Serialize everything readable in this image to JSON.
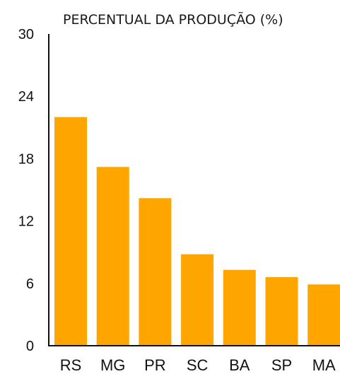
{
  "chart_data": {
    "type": "bar",
    "title": "PERCENTUAL DA PRODUÇÃO (%)",
    "xlabel": "",
    "ylabel": "",
    "categories": [
      "RS",
      "MG",
      "PR",
      "SC",
      "BA",
      "SP",
      "MA"
    ],
    "values": [
      22.0,
      17.2,
      14.2,
      8.8,
      7.3,
      6.6,
      5.9
    ],
    "ylim": [
      0,
      30
    ],
    "yticks": [
      "0",
      "6",
      "12",
      "18",
      "24",
      "30"
    ],
    "grid": false,
    "legend": "none",
    "bar_color": "#FFA500",
    "axis_color": "#111111"
  }
}
